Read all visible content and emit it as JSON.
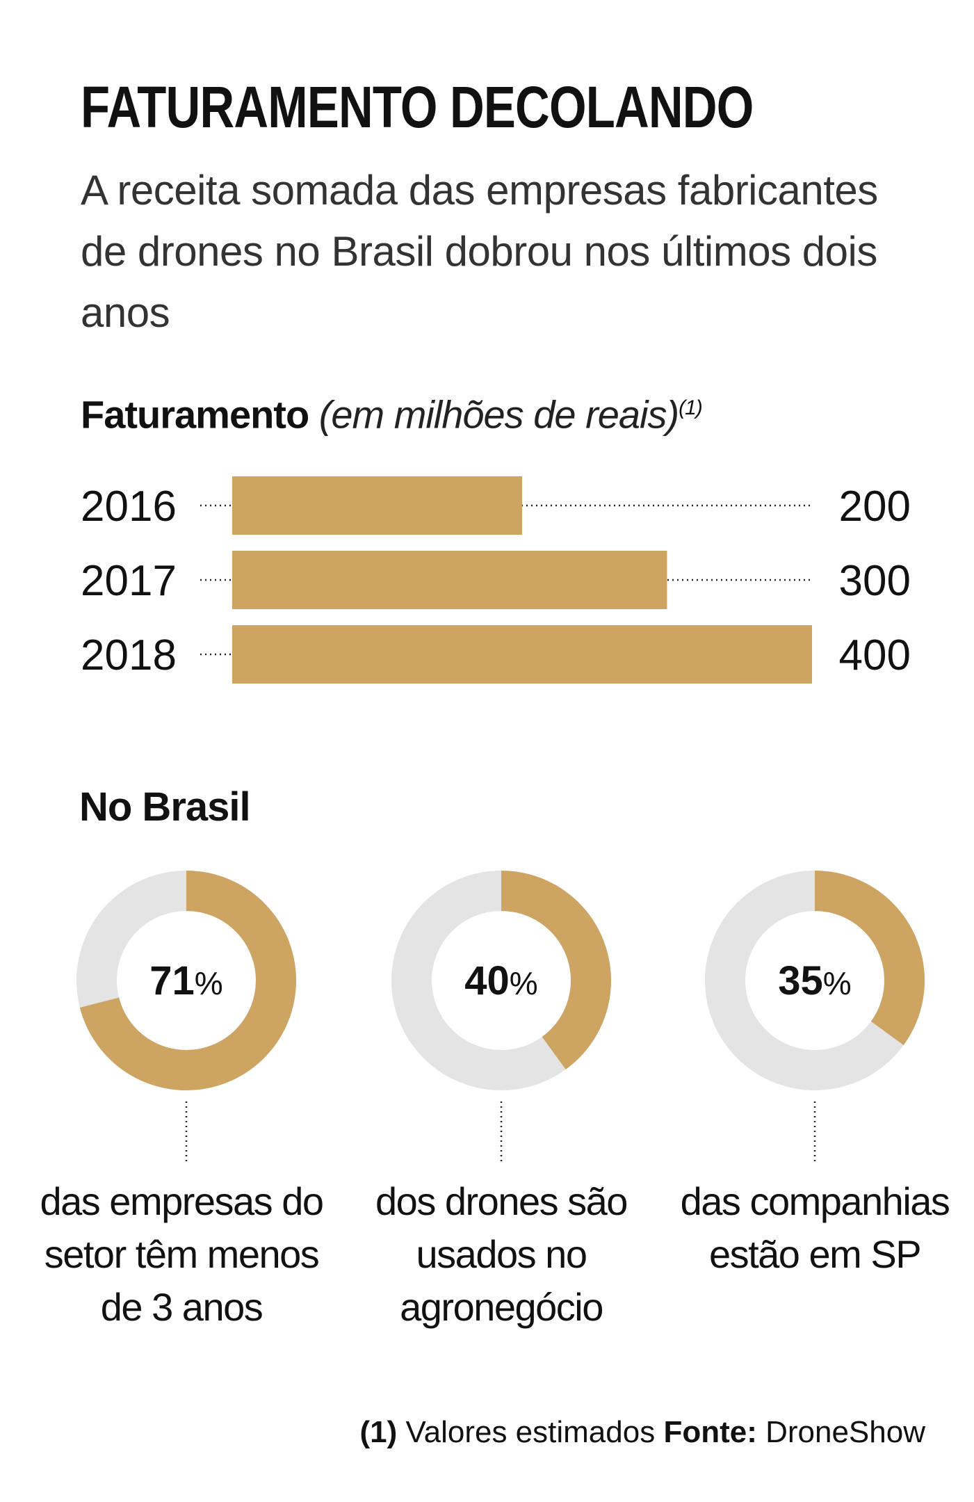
{
  "header": {
    "title": "FATURAMENTO DECOLANDO",
    "subtitle": "A receita somada das empresas fabricantes de drones no Brasil dobrou nos últimos dois anos"
  },
  "colors": {
    "accent": "#CDA462",
    "track": "#E4E4E4",
    "text": "#111111"
  },
  "chart_data": [
    {
      "type": "bar",
      "orientation": "horizontal",
      "title": "Faturamento",
      "unit": "(em milhões de reais)",
      "note_marker": "(1)",
      "categories": [
        "2016",
        "2017",
        "2018"
      ],
      "values": [
        200,
        300,
        400
      ],
      "value_labels": [
        "200",
        "300",
        "400"
      ],
      "xlim": [
        0,
        400
      ],
      "gridlines": false
    },
    {
      "type": "pie",
      "variant": "donut",
      "title": "No Brasil",
      "items": [
        {
          "value": 71,
          "number": "71",
          "symbol": "%",
          "label": "das empresas do setor têm menos de 3 anos"
        },
        {
          "value": 40,
          "number": "40",
          "symbol": "%",
          "label": "dos drones são usados no agronegócio"
        },
        {
          "value": 35,
          "number": "35",
          "symbol": "%",
          "label": "das companhias estão em SP"
        }
      ]
    }
  ],
  "footer": {
    "note_marker": "(1)",
    "note_text": "Valores estimados",
    "source_label": "Fonte:",
    "source_text": "DroneShow"
  }
}
